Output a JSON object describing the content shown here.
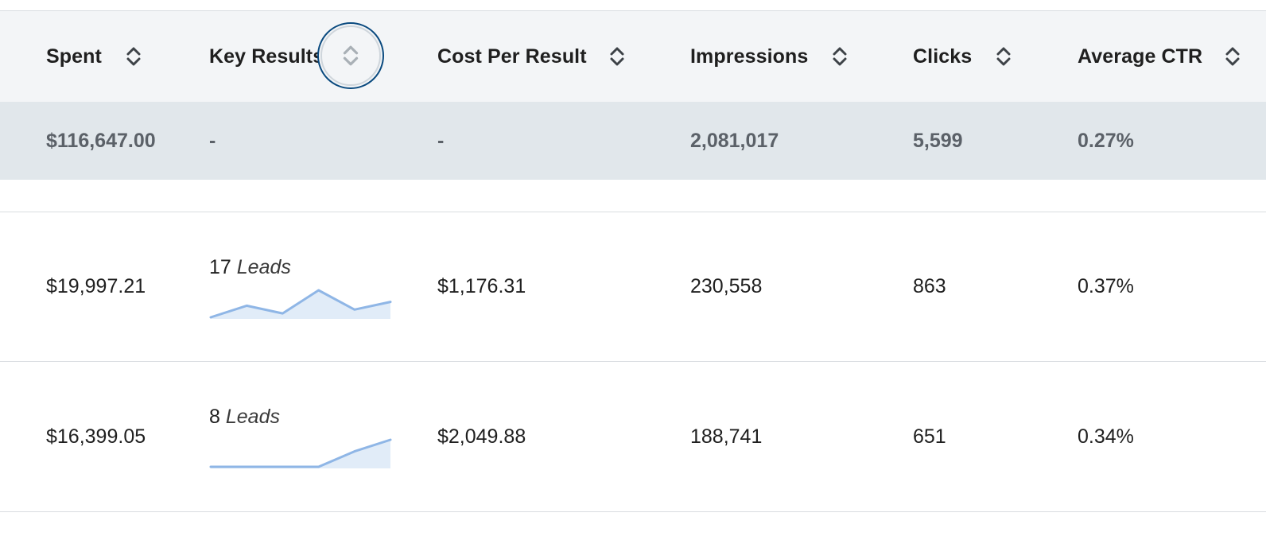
{
  "columns": [
    {
      "label": "Spent"
    },
    {
      "label": "Key Results"
    },
    {
      "label": "Cost Per Result"
    },
    {
      "label": "Impressions"
    },
    {
      "label": "Clicks"
    },
    {
      "label": "Average CTR"
    }
  ],
  "summary": {
    "spent": "$116,647.00",
    "key_results": "-",
    "cost_per_result": "-",
    "impressions": "2,081,017",
    "clicks": "5,599",
    "average_ctr": "0.27%"
  },
  "rows": [
    {
      "spent": "$19,997.21",
      "key_results_count": "17",
      "key_results_unit": "Leads",
      "trend": [
        0,
        3,
        1,
        7,
        2,
        4
      ],
      "cost_per_result": "$1,176.31",
      "impressions": "230,558",
      "clicks": "863",
      "average_ctr": "0.37%"
    },
    {
      "spent": "$16,399.05",
      "key_results_count": "8",
      "key_results_unit": "Leads",
      "trend": [
        0,
        0,
        0,
        0,
        4,
        7
      ],
      "cost_per_result": "$2,049.88",
      "impressions": "188,741",
      "clicks": "651",
      "average_ctr": "0.34%"
    }
  ],
  "colors": {
    "header_bg": "#f3f5f7",
    "summary_bg": "#e1e7eb",
    "sparkline_stroke": "#8fb6e6",
    "sparkline_fill": "#e1ecf8",
    "focus_ring": "#0a4a7f"
  },
  "icons": {
    "sort": "sort-up-down-chevrons-icon"
  }
}
